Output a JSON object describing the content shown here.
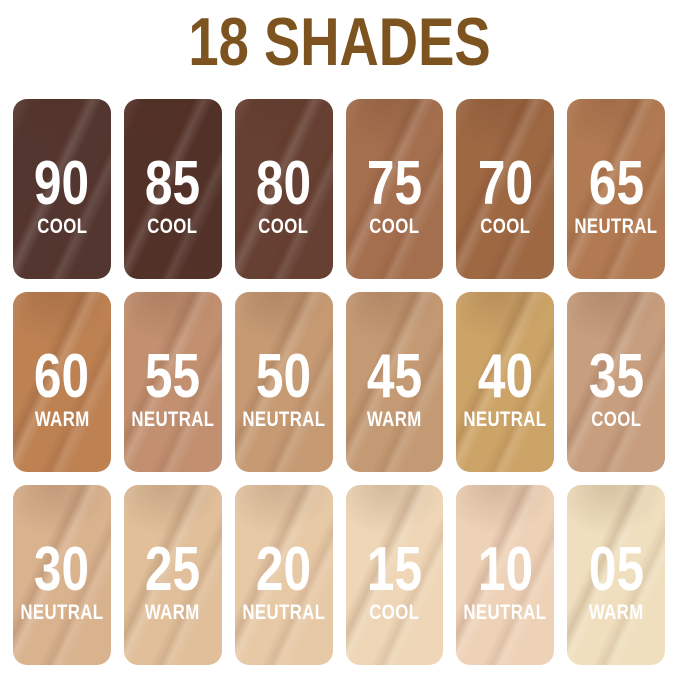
{
  "title": {
    "text": "18 SHADES",
    "color": "#7d541f"
  },
  "page_background": "#ffffff",
  "swatch_text_color": "#ffffff",
  "shade_count": "18",
  "shades": [
    {
      "number": "90",
      "undertone": "COOL",
      "color": "#543630"
    },
    {
      "number": "85",
      "undertone": "COOL",
      "color": "#523128"
    },
    {
      "number": "80",
      "undertone": "COOL",
      "color": "#664032"
    },
    {
      "number": "75",
      "undertone": "COOL",
      "color": "#a46f4e"
    },
    {
      "number": "70",
      "undertone": "COOL",
      "color": "#9e6843"
    },
    {
      "number": "65",
      "undertone": "NEUTRAL",
      "color": "#b17a52"
    },
    {
      "number": "60",
      "undertone": "WARM",
      "color": "#bd8152"
    },
    {
      "number": "55",
      "undertone": "NEUTRAL",
      "color": "#c29070"
    },
    {
      "number": "50",
      "undertone": "NEUTRAL",
      "color": "#c69b74"
    },
    {
      "number": "45",
      "undertone": "WARM",
      "color": "#c49a74"
    },
    {
      "number": "40",
      "undertone": "NEUTRAL",
      "color": "#cda467"
    },
    {
      "number": "35",
      "undertone": "COOL",
      "color": "#c79e7e"
    },
    {
      "number": "30",
      "undertone": "NEUTRAL",
      "color": "#d9b28e"
    },
    {
      "number": "25",
      "undertone": "WARM",
      "color": "#e0bf9a"
    },
    {
      "number": "20",
      "undertone": "NEUTRAL",
      "color": "#e7c9a6"
    },
    {
      "number": "15",
      "undertone": "COOL",
      "color": "#eed6b6"
    },
    {
      "number": "10",
      "undertone": "NEUTRAL",
      "color": "#eed2b7"
    },
    {
      "number": "05",
      "undertone": "WARM",
      "color": "#efdfbe"
    }
  ]
}
